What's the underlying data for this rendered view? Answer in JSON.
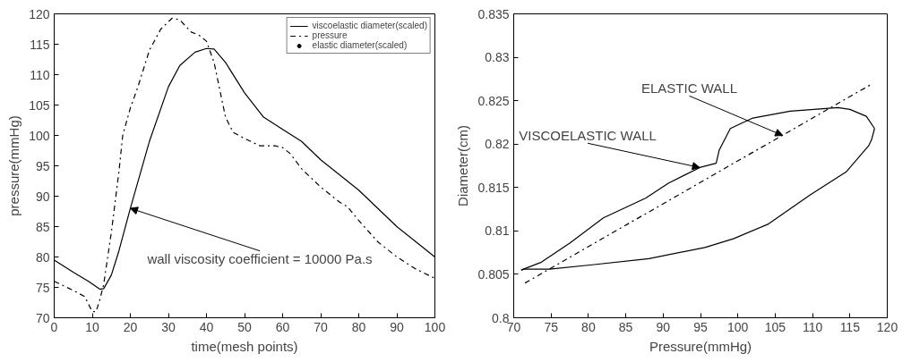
{
  "chart_data": [
    {
      "type": "line",
      "xlabel": "time(mesh points)",
      "ylabel": "pressure(mmHg)",
      "xlim": [
        0,
        100
      ],
      "ylim": [
        70,
        120
      ],
      "xticks": [
        0,
        10,
        20,
        30,
        40,
        50,
        60,
        70,
        80,
        90,
        100
      ],
      "yticks": [
        70,
        75,
        80,
        85,
        90,
        95,
        100,
        105,
        110,
        115,
        120
      ],
      "grid": false,
      "legend": "top right",
      "series": [
        {
          "name": "viscoelastic diameter(scaled)",
          "color": "#000000",
          "line_style": "solid",
          "x": [
            0,
            5,
            9,
            12,
            13,
            15,
            17,
            20,
            25,
            30,
            33,
            37,
            40,
            42,
            45,
            50,
            55,
            60,
            65,
            70,
            80,
            90,
            100
          ],
          "values": [
            79.5,
            77.5,
            76,
            74.7,
            74.8,
            77,
            81,
            88,
            99,
            108,
            111.5,
            113.7,
            114.3,
            114.2,
            112,
            107,
            103,
            101,
            99,
            96,
            91,
            85,
            80
          ]
        },
        {
          "name": "pressure",
          "color": "#000000",
          "line_style": "dashdot",
          "x": [
            0,
            5,
            8,
            10,
            11,
            12,
            13,
            15,
            17,
            18,
            20,
            22,
            25,
            28,
            31,
            33,
            36,
            38,
            40,
            42,
            43,
            45,
            47,
            50,
            54,
            58,
            60,
            62,
            65,
            70,
            75,
            77,
            80,
            85,
            90,
            95,
            100
          ],
          "values": [
            76,
            74.5,
            73.5,
            71,
            71,
            73,
            75.5,
            84,
            94,
            100,
            104.5,
            108,
            114,
            117.5,
            119.3,
            119,
            117,
            116.5,
            115.5,
            112,
            109,
            103,
            100.5,
            99.5,
            98.3,
            98.3,
            98,
            97,
            94.5,
            91.5,
            89,
            88.3,
            86,
            82.5,
            80,
            78,
            76.5
          ]
        },
        {
          "name": "elastic diameter(scaled)",
          "type": "scatter",
          "marker": "circle",
          "color": "#000000"
        }
      ],
      "annotations": [
        {
          "text": "wall viscosity coefficient = 10000 Pa.s",
          "x": 20,
          "y": 88
        }
      ]
    },
    {
      "type": "line",
      "xlabel": "Pressure(mmHg)",
      "ylabel": "Diameter(cm)",
      "xlim": [
        70,
        120
      ],
      "ylim": [
        0.8,
        0.835
      ],
      "xticks": [
        70,
        75,
        80,
        85,
        90,
        95,
        100,
        105,
        110,
        115,
        120
      ],
      "yticks": [
        0.8,
        0.805,
        0.81,
        0.815,
        0.82,
        0.825,
        0.83,
        0.835
      ],
      "grid": false,
      "series": [
        {
          "color": "#000000",
          "line_style": "solid",
          "x": [
            71,
            73.7,
            77.5,
            82,
            87.7,
            90.7,
            94.9,
            97.1,
            97.5,
            99,
            102,
            107,
            113.4,
            115,
            117.2,
            118.3
          ],
          "values": [
            0.8055,
            0.8064,
            0.8086,
            0.8115,
            0.8138,
            0.8155,
            0.8173,
            0.8178,
            0.8193,
            0.8218,
            0.823,
            0.8238,
            0.8242,
            0.824,
            0.8232,
            0.8218
          ]
        },
        {
          "color": "#000000",
          "line_style": "solid",
          "x": [
            71,
            71.4,
            74.8,
            80.5,
            88.1,
            95.6,
            99.4,
            104.1,
            109.6,
            114.5,
            117.5,
            117.9,
            118.3
          ],
          "values": [
            0.8055,
            0.8056,
            0.8056,
            0.8061,
            0.8068,
            0.8081,
            0.8091,
            0.8108,
            0.8141,
            0.8168,
            0.8198,
            0.8205,
            0.8218
          ]
        },
        {
          "color": "#000000",
          "line_style": "dashdot",
          "x": [
            71.5,
            117.7
          ],
          "values": [
            0.804,
            0.8268
          ]
        }
      ],
      "annotations": [
        {
          "text": "ELASTIC WALL",
          "x": 106,
          "y": 0.821
        },
        {
          "text": "VISCOELASTIC WALL",
          "x": 94.9,
          "y": 0.8173
        }
      ]
    }
  ]
}
